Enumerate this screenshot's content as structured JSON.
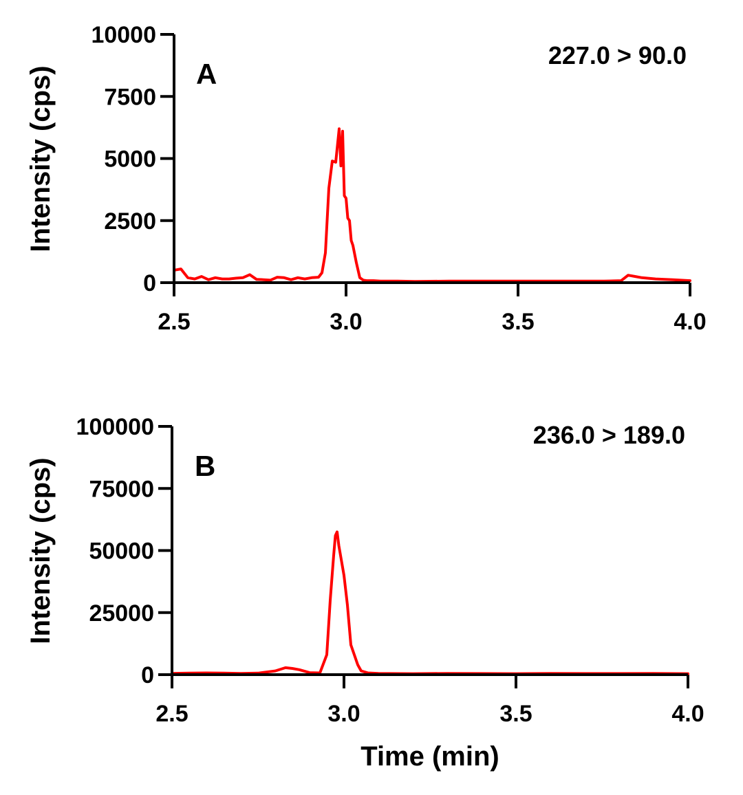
{
  "chart_data": [
    {
      "type": "line",
      "panel_label": "A",
      "annotation": "227.0 > 90.0",
      "ylabel": "Intensity (cps)",
      "xlabel": "",
      "xlim": [
        2.5,
        4.0
      ],
      "ylim": [
        0,
        10000
      ],
      "xticks": [
        "2.5",
        "3.0",
        "3.5",
        "4.0"
      ],
      "yticks": [
        "0",
        "2500",
        "5000",
        "7500",
        "10000"
      ],
      "grid": false,
      "color": "#ff0000",
      "series": [
        {
          "x": [
            2.5,
            2.52,
            2.54,
            2.56,
            2.58,
            2.6,
            2.62,
            2.64,
            2.66,
            2.68,
            2.7,
            2.72,
            2.74,
            2.76,
            2.78,
            2.8,
            2.82,
            2.84,
            2.86,
            2.88,
            2.9,
            2.92,
            2.93,
            2.94,
            2.95,
            2.96,
            2.97,
            2.98,
            2.985,
            2.99,
            2.995,
            3.0,
            3.005,
            3.01,
            3.015,
            3.02,
            3.03,
            3.04,
            3.05,
            3.06,
            3.08,
            3.1,
            3.15,
            3.2,
            3.3,
            3.4,
            3.5,
            3.6,
            3.7,
            3.75,
            3.8,
            3.82,
            3.84,
            3.86,
            3.9,
            3.95,
            4.0
          ],
          "y": [
            500,
            550,
            200,
            150,
            250,
            120,
            200,
            150,
            150,
            180,
            200,
            320,
            130,
            120,
            100,
            220,
            200,
            120,
            200,
            150,
            200,
            220,
            400,
            1200,
            3800,
            4900,
            4850,
            6200,
            4700,
            6100,
            3500,
            3400,
            2600,
            2500,
            1700,
            1500,
            800,
            200,
            100,
            80,
            80,
            60,
            60,
            50,
            60,
            60,
            60,
            60,
            60,
            60,
            80,
            300,
            250,
            200,
            150,
            120,
            80
          ]
        }
      ]
    },
    {
      "type": "line",
      "panel_label": "B",
      "annotation": "236.0 > 189.0",
      "ylabel": "Intensity (cps)",
      "xlabel": "Time (min)",
      "xlim": [
        2.5,
        4.0
      ],
      "ylim": [
        0,
        100000
      ],
      "xticks": [
        "2.5",
        "3.0",
        "3.5",
        "4.0"
      ],
      "yticks": [
        "0",
        "25000",
        "50000",
        "75000",
        "100000"
      ],
      "grid": false,
      "color": "#ff0000",
      "series": [
        {
          "x": [
            2.5,
            2.55,
            2.6,
            2.65,
            2.7,
            2.75,
            2.8,
            2.83,
            2.85,
            2.87,
            2.9,
            2.93,
            2.95,
            2.96,
            2.97,
            2.975,
            2.98,
            2.985,
            2.99,
            3.0,
            3.01,
            3.02,
            3.03,
            3.04,
            3.05,
            3.07,
            3.1,
            3.2,
            3.3,
            3.4,
            3.5,
            3.6,
            3.7,
            3.8,
            3.9,
            4.0
          ],
          "y": [
            500,
            600,
            700,
            600,
            500,
            600,
            1500,
            2800,
            2500,
            2000,
            800,
            700,
            8000,
            30000,
            48000,
            56000,
            57500,
            52000,
            48000,
            40000,
            28000,
            12000,
            8000,
            4000,
            1500,
            700,
            500,
            400,
            500,
            450,
            400,
            500,
            450,
            450,
            500,
            400
          ]
        }
      ]
    }
  ]
}
